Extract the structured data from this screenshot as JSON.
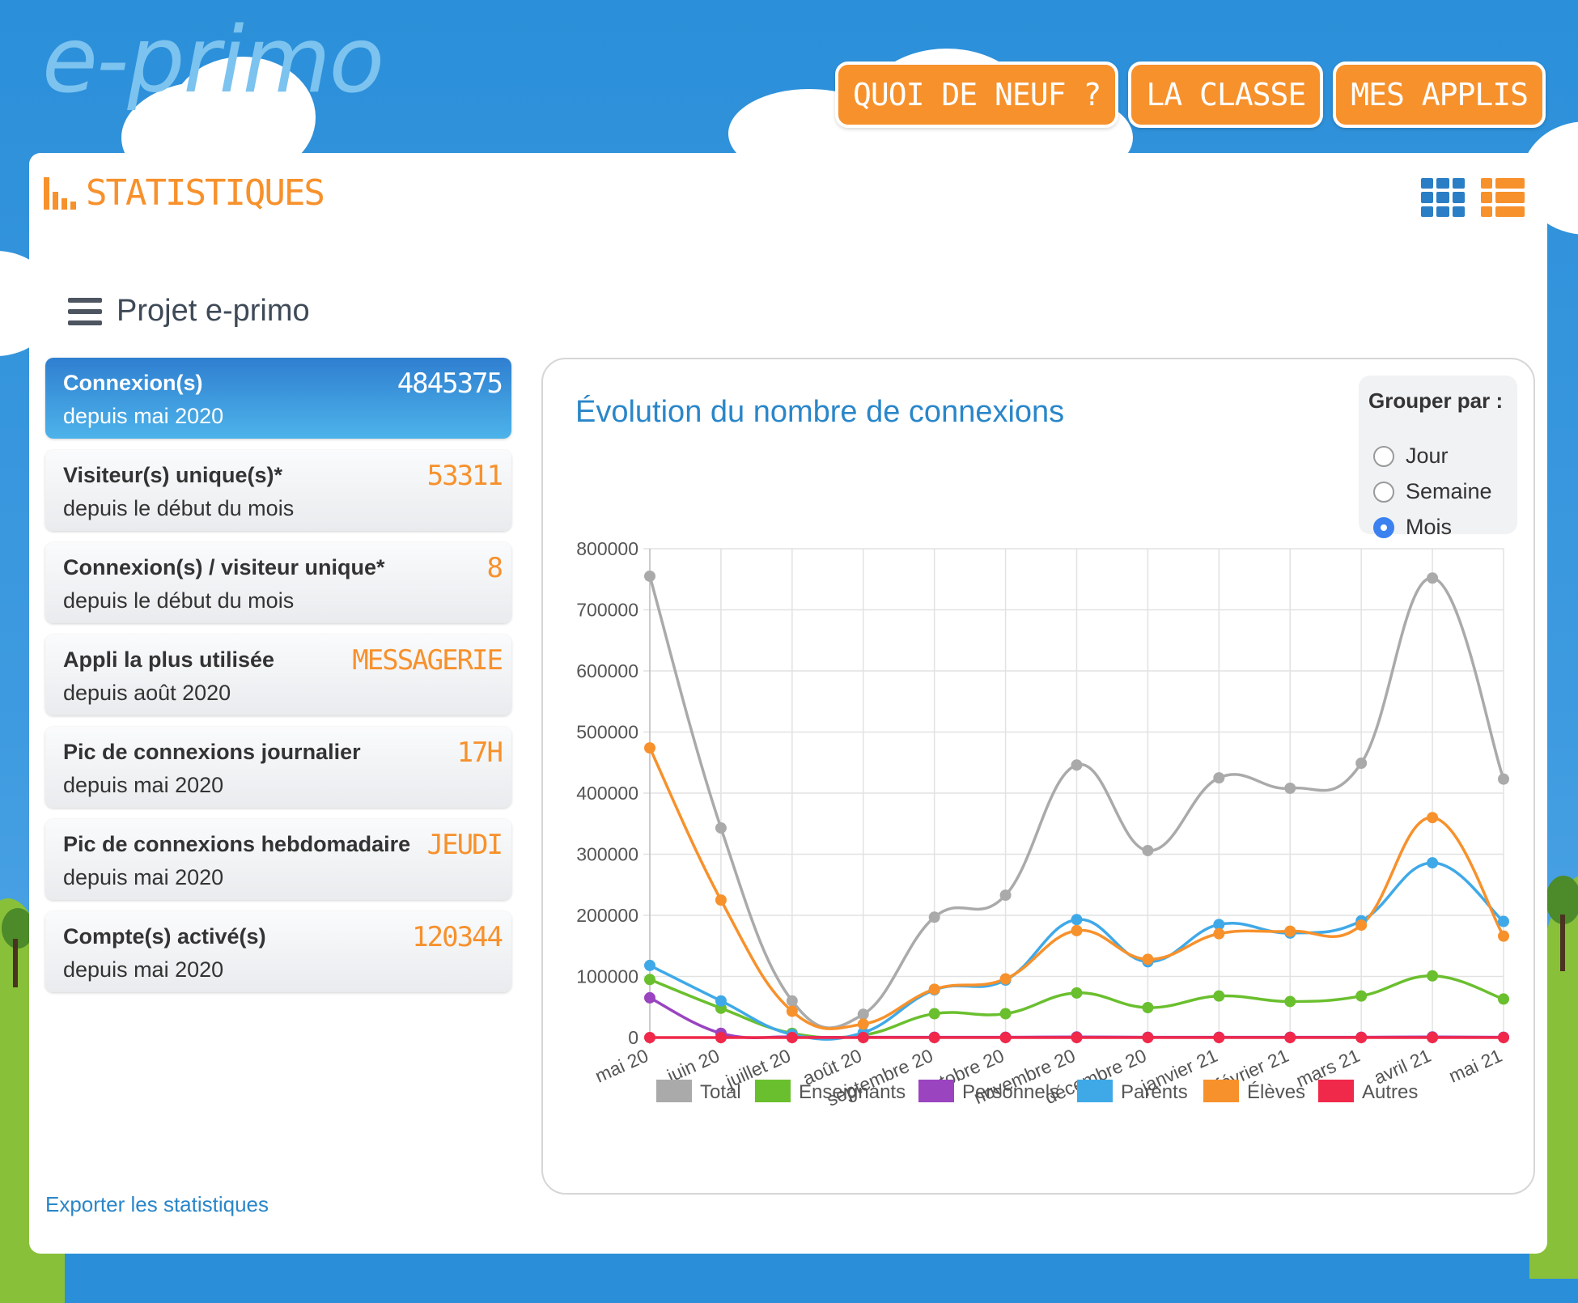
{
  "header": {
    "logo_text": "e-primo",
    "nav": [
      {
        "label": "QUOI DE NEUF ?"
      },
      {
        "label": "LA CLASSE"
      },
      {
        "label": "MES APPLIS"
      }
    ]
  },
  "page": {
    "title": "STATISTIQUES",
    "project": "Projet e-primo",
    "export_link": "Exporter les statistiques"
  },
  "cards": [
    {
      "label": "Connexion(s)",
      "sub": "depuis mai 2020",
      "value": "4845375",
      "active": true
    },
    {
      "label": "Visiteur(s) unique(s)*",
      "sub": "depuis le début du mois",
      "value": "53311"
    },
    {
      "label": "Connexion(s) / visiteur unique*",
      "sub": "depuis le début du mois",
      "value": "8"
    },
    {
      "label": "Appli la plus utilisée",
      "sub": "depuis août 2020",
      "value": "MESSAGERIE"
    },
    {
      "label": "Pic de connexions journalier",
      "sub": "depuis mai 2020",
      "value": "17H"
    },
    {
      "label": "Pic de connexions hebdomadaire",
      "sub": "depuis mai 2020",
      "value": "JEUDI"
    },
    {
      "label": "Compte(s) activé(s)",
      "sub": "depuis mai 2020",
      "value": "120344"
    }
  ],
  "grouper": {
    "title": "Grouper par :",
    "options": [
      "Jour",
      "Semaine",
      "Mois"
    ],
    "selected": "Mois"
  },
  "colors": {
    "accent_orange": "#f7912c",
    "accent_blue": "#2a86c9"
  },
  "chart_data": {
    "type": "line",
    "title": "Évolution du nombre de connexions",
    "categories": [
      "mai 20",
      "juin 20",
      "juillet 20",
      "août 20",
      "septembre 20",
      "octobre 20",
      "novembre 20",
      "décembre 20",
      "janvier 21",
      "février 21",
      "mars 21",
      "avril 21",
      "mai 21"
    ],
    "ylim": [
      0,
      800000
    ],
    "yticks": [
      "0",
      "100000",
      "200000",
      "300000",
      "400000",
      "500000",
      "600000",
      "700000",
      "800000"
    ],
    "grid": true,
    "legend_position": "bottom",
    "series": [
      {
        "name": "Total",
        "color": "#aaaaaa",
        "values": [
          755000,
          343000,
          60000,
          38000,
          197000,
          233000,
          446000,
          306000,
          425000,
          408000,
          449000,
          752000,
          423000
        ]
      },
      {
        "name": "Enseignants",
        "color": "#6abf2e",
        "values": [
          95000,
          48000,
          7000,
          4000,
          39000,
          39000,
          73000,
          49000,
          68000,
          59000,
          68000,
          101000,
          63000
        ]
      },
      {
        "name": "Personnels",
        "color": "#9a44c0",
        "values": [
          65000,
          7000,
          1000,
          500,
          500,
          500,
          1000,
          500,
          500,
          500,
          500,
          1000,
          500
        ]
      },
      {
        "name": "Parents",
        "color": "#3fa9e8",
        "values": [
          118000,
          60000,
          5000,
          8000,
          78000,
          94000,
          193000,
          124000,
          185000,
          171000,
          191000,
          286000,
          190000
        ]
      },
      {
        "name": "Élèves",
        "color": "#f7912c",
        "values": [
          474000,
          225000,
          43000,
          22000,
          79000,
          96000,
          175000,
          128000,
          170000,
          174000,
          184000,
          360000,
          166000
        ]
      },
      {
        "name": "Autres",
        "color": "#f0284a",
        "values": [
          0,
          0,
          0,
          0,
          0,
          0,
          0,
          0,
          0,
          0,
          0,
          0,
          0
        ]
      }
    ]
  }
}
